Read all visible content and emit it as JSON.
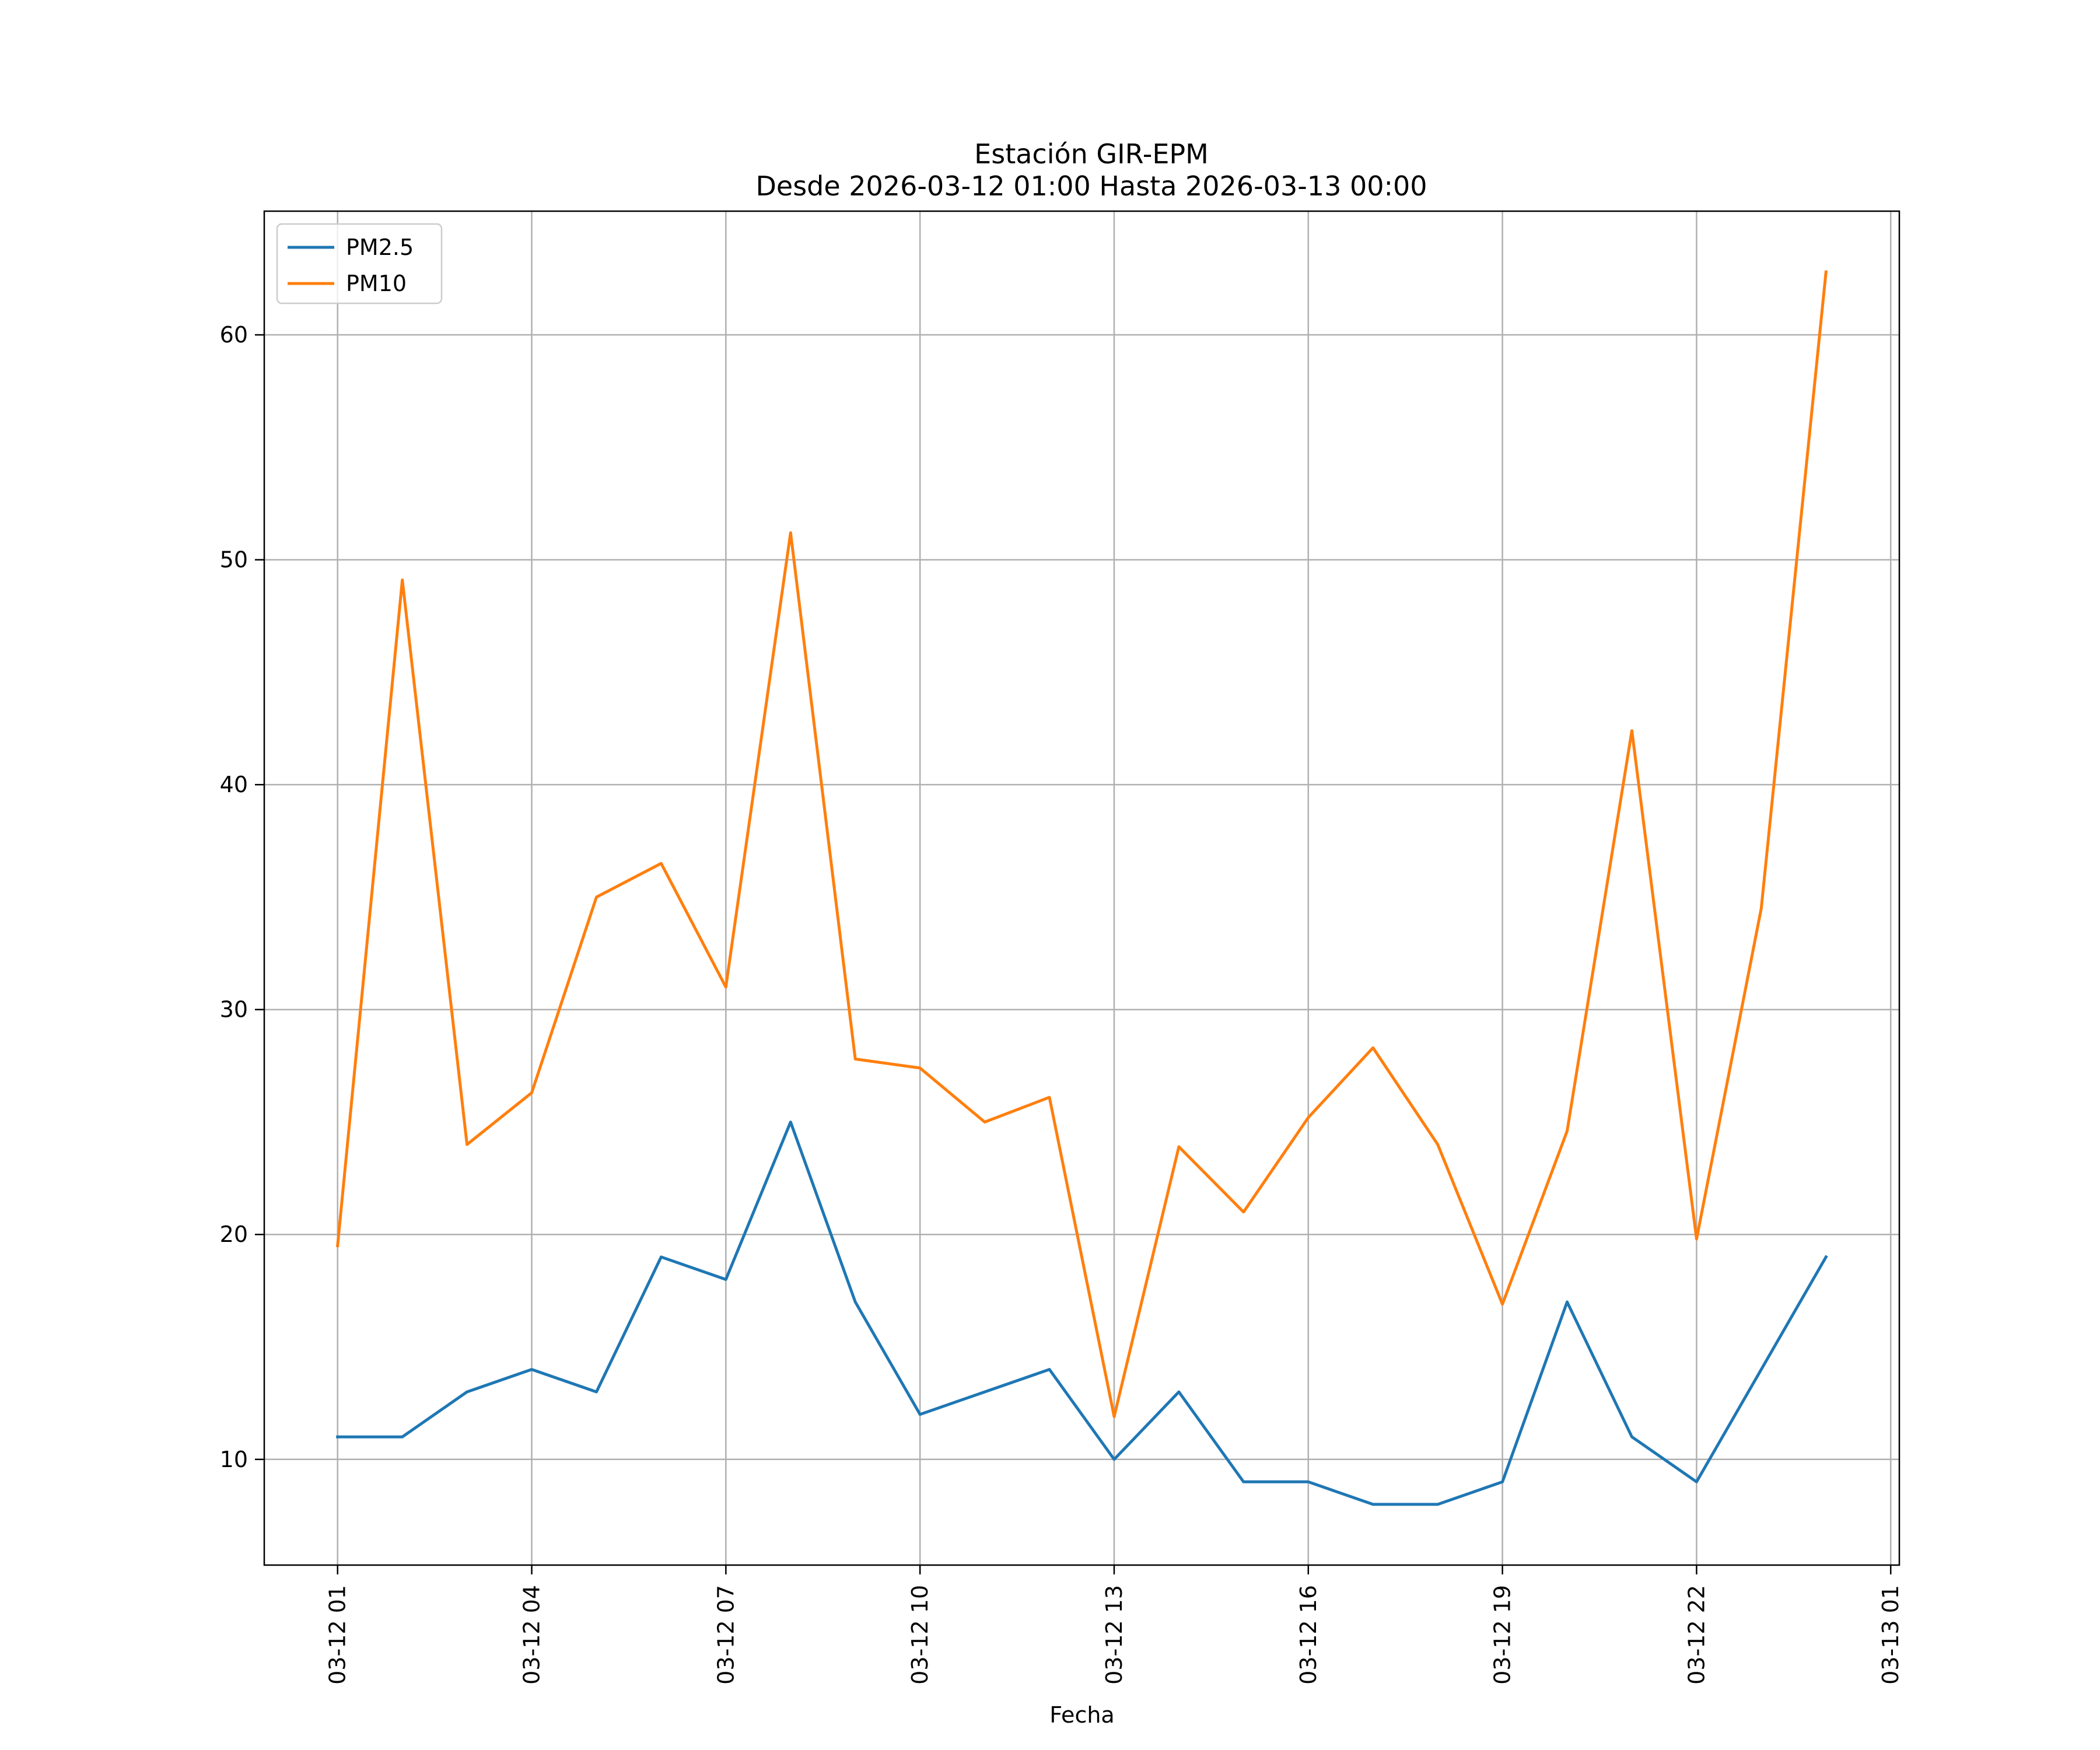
{
  "chart_data": {
    "type": "line",
    "title": [
      "Estación GIR-EPM",
      "Desde 2026-03-12 01:00 Hasta 2026-03-13 00:00"
    ],
    "xlabel": "Fecha",
    "ylabel": "",
    "x": [
      "2026-03-12 01:00",
      "2026-03-12 02:00",
      "2026-03-12 03:00",
      "2026-03-12 04:00",
      "2026-03-12 05:00",
      "2026-03-12 06:00",
      "2026-03-12 07:00",
      "2026-03-12 08:00",
      "2026-03-12 09:00",
      "2026-03-12 10:00",
      "2026-03-12 11:00",
      "2026-03-12 12:00",
      "2026-03-12 13:00",
      "2026-03-12 14:00",
      "2026-03-12 15:00",
      "2026-03-12 16:00",
      "2026-03-12 17:00",
      "2026-03-12 18:00",
      "2026-03-12 19:00",
      "2026-03-12 20:00",
      "2026-03-12 21:00",
      "2026-03-12 22:00",
      "2026-03-12 23:00",
      "2026-03-13 00:00"
    ],
    "x_ticks": [
      "03-12 01",
      "03-12 04",
      "03-12 07",
      "03-12 10",
      "03-12 13",
      "03-12 16",
      "03-12 19",
      "03-12 22",
      "03-13 01"
    ],
    "x_tick_values": [
      "2026-03-12 01:00",
      "2026-03-12 04:00",
      "2026-03-12 07:00",
      "2026-03-12 10:00",
      "2026-03-12 13:00",
      "2026-03-12 16:00",
      "2026-03-12 19:00",
      "2026-03-12 22:00",
      "2026-03-13 01:00"
    ],
    "xlim": [
      "2026-03-11 23:52",
      "2026-03-13 01:08"
    ],
    "y_ticks": [
      10,
      20,
      30,
      40,
      50,
      60
    ],
    "ylim": [
      5.3,
      65.5
    ],
    "grid": true,
    "legend_position": "top-left",
    "series": [
      {
        "name": "PM2.5",
        "color": "#1f77b4",
        "values": [
          11,
          11,
          13,
          14,
          13,
          19,
          18,
          25,
          17,
          12,
          13,
          14,
          10,
          13,
          9,
          9,
          8,
          8,
          9,
          17,
          11,
          9,
          14,
          19
        ]
      },
      {
        "name": "PM10",
        "color": "#ff7f0e",
        "values": [
          19.5,
          49.1,
          24.0,
          26.3,
          35.0,
          36.5,
          31.0,
          51.2,
          27.8,
          27.4,
          25.0,
          26.1,
          11.9,
          23.9,
          21.0,
          25.2,
          28.3,
          24.0,
          16.9,
          24.6,
          42.4,
          19.8,
          34.5,
          62.8
        ]
      }
    ]
  }
}
